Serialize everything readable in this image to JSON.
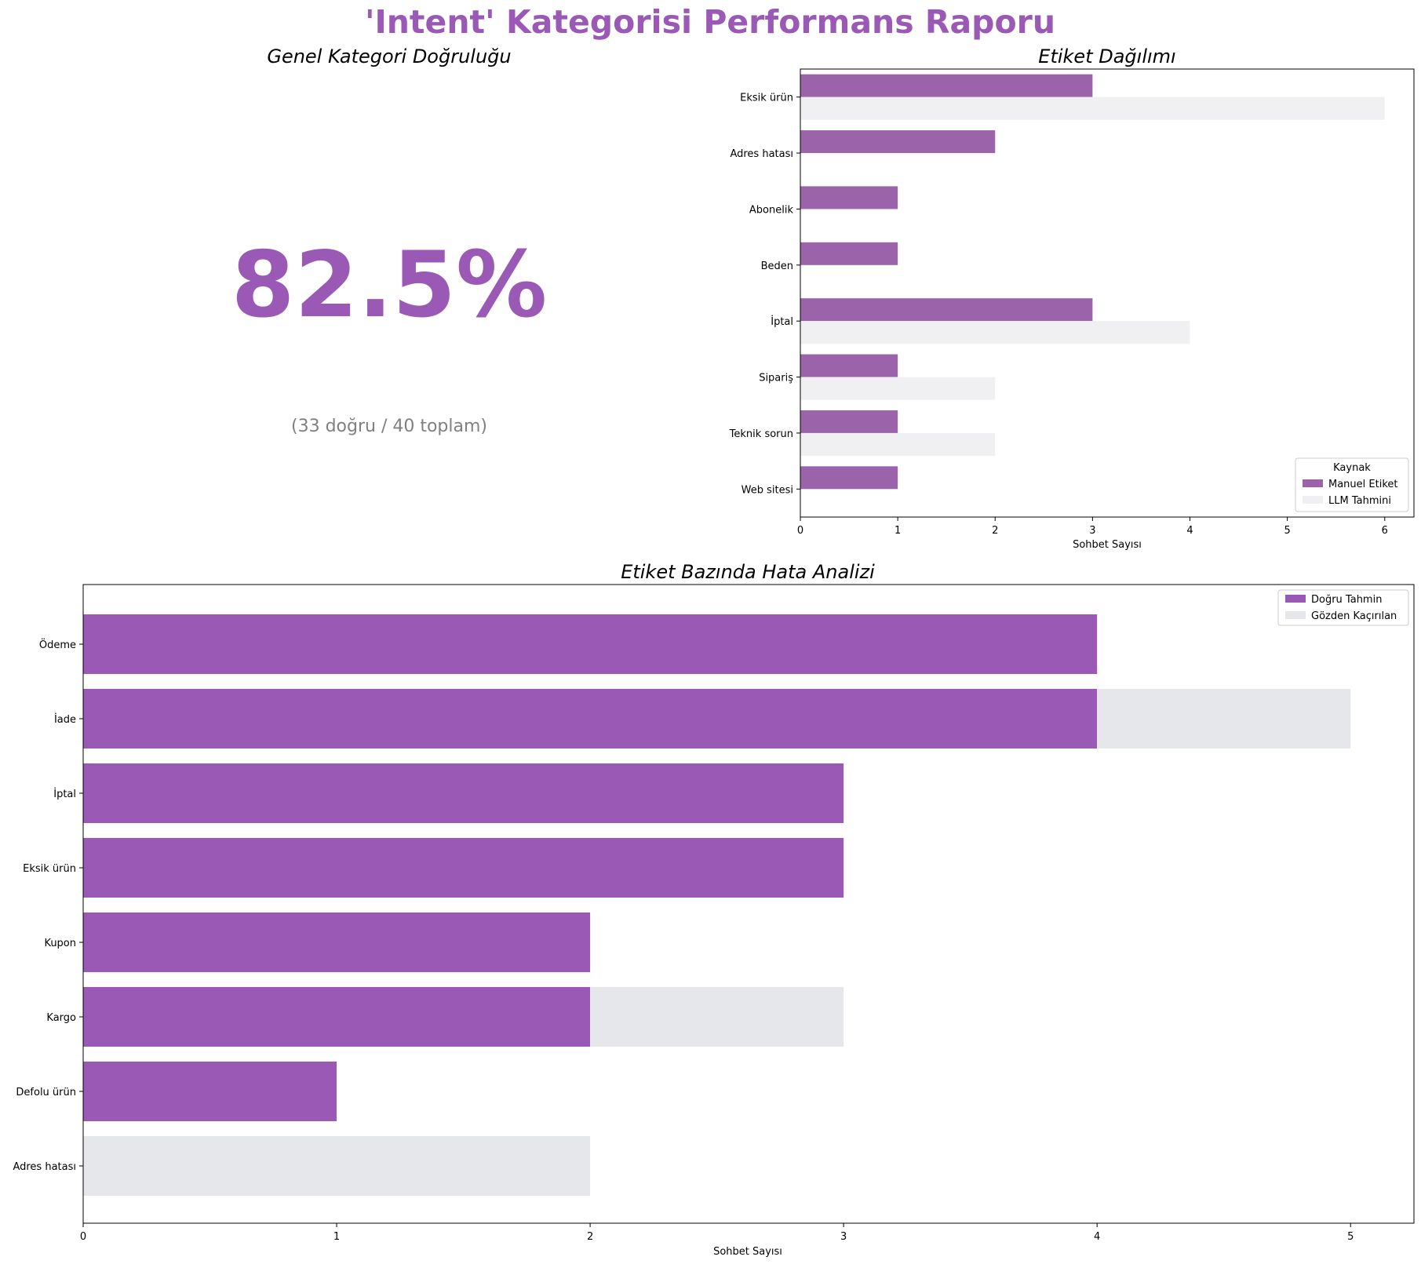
{
  "figure": {
    "title": "'Intent' Kategorisi Performans Raporu",
    "title_color": "#9b59b6"
  },
  "colors": {
    "accent": "#9b59b6",
    "manual": "#9b64aa",
    "llm": "#f0f0f2",
    "missed": "#e6e7ea",
    "subtext": "#808080"
  },
  "chart_data": [
    {
      "type": "table",
      "title": "Genel Kategori Doğruluğu",
      "value_text": "82.5%",
      "value": 82.5,
      "detail_text": "(33 doğru / 40 toplam)",
      "correct": 33,
      "total": 40
    },
    {
      "type": "bar",
      "orientation": "horizontal",
      "title": "Etiket Dağılımı",
      "xlabel": "Sohbet Sayısı",
      "ylabel": "",
      "categories": [
        "Eksik ürün",
        "Adres hatası",
        "Abonelik",
        "Beden",
        "İptal",
        "Sipariş",
        "Teknik sorun",
        "Web sitesi"
      ],
      "series": [
        {
          "name": "Manuel Etiket",
          "values": [
            3,
            2,
            1,
            1,
            3,
            1,
            1,
            1
          ]
        },
        {
          "name": "LLM Tahmini",
          "values": [
            6,
            0,
            0,
            0,
            4,
            2,
            2,
            0
          ]
        }
      ],
      "legend_title": "Kaynak",
      "legend_position": "lower right",
      "xlim": [
        0,
        6.3
      ],
      "xticks": [
        "0",
        "1",
        "2",
        "3",
        "4",
        "5",
        "6"
      ],
      "grid": false
    },
    {
      "type": "bar",
      "orientation": "horizontal",
      "stacked": true,
      "title": "Etiket Bazında Hata Analizi",
      "xlabel": "Sohbet Sayısı",
      "ylabel": "",
      "categories": [
        "Ödeme",
        "İade",
        "İptal",
        "Eksik ürün",
        "Kupon",
        "Kargo",
        "Defolu ürün",
        "Adres hatası"
      ],
      "series": [
        {
          "name": "Doğru Tahmin",
          "values": [
            4,
            4,
            3,
            3,
            2,
            2,
            1,
            0
          ]
        },
        {
          "name": "Gözden Kaçırılan",
          "values": [
            0,
            1,
            0,
            0,
            0,
            1,
            0,
            2
          ]
        }
      ],
      "legend_position": "upper right",
      "xlim": [
        0,
        5.25
      ],
      "xticks": [
        "0",
        "1",
        "2",
        "3",
        "4",
        "5"
      ],
      "grid": false
    }
  ]
}
